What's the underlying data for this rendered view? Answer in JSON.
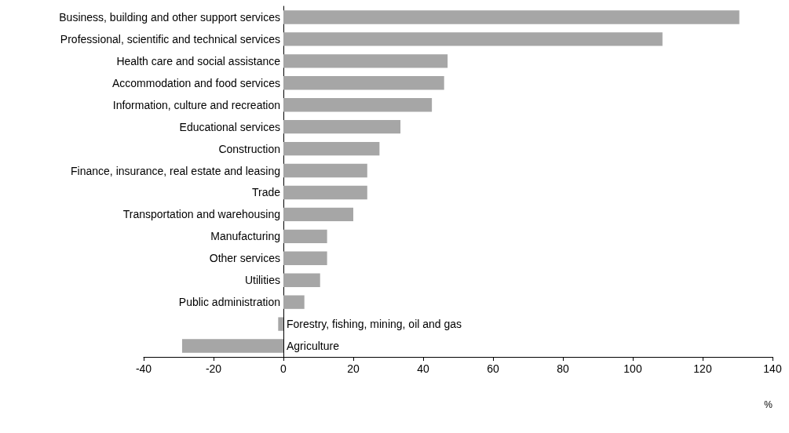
{
  "chart_data": {
    "type": "bar",
    "orientation": "horizontal",
    "xlabel": "%",
    "categories": [
      "Business, building and other support services",
      "Professional, scientific and technical services",
      "Health care and social assistance",
      "Accommodation and food services",
      "Information, culture and recreation",
      "Educational services",
      "Construction",
      "Finance, insurance, real estate and leasing",
      "Trade",
      "Transportation and warehousing",
      "Manufacturing",
      "Other services",
      "Utilities",
      "Public administration",
      "Forestry, fishing, mining, oil and gas",
      "Agriculture"
    ],
    "values": [
      130.5,
      108.5,
      47,
      46,
      42.5,
      33.5,
      27.5,
      24,
      24,
      20,
      12.5,
      12.5,
      10.5,
      6,
      -1.5,
      -29
    ],
    "color": "#a6a6a6",
    "xlim": [
      -40,
      140
    ],
    "xticks": [
      -40,
      -20,
      0,
      20,
      40,
      60,
      80,
      100,
      120,
      140
    ],
    "grid": false
  }
}
